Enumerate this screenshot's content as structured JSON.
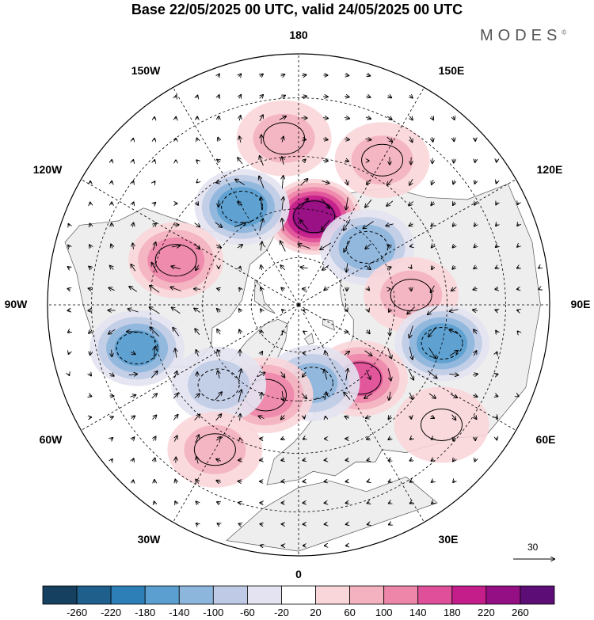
{
  "title": "Base 22/05/2025 00 UTC, valid 24/05/2025 00 UTC",
  "brand": "MODES",
  "brand_mark": "©",
  "longitude_labels": [
    "180",
    "150E",
    "120E",
    "90E",
    "60E",
    "30E",
    "0",
    "30W",
    "60W",
    "90W",
    "120W",
    "150W"
  ],
  "wind_reference": {
    "label": "30",
    "value": 30
  },
  "colorbar": {
    "ticks": [
      "-260",
      "-220",
      "-180",
      "-140",
      "-100",
      "-60",
      "-20",
      "20",
      "60",
      "100",
      "140",
      "180",
      "220",
      "260"
    ],
    "colors": [
      "#16405f",
      "#1f5f8b",
      "#2d7fb8",
      "#5a9fcf",
      "#8db6dc",
      "#bfcbe6",
      "#e3e3f1",
      "#ffffff",
      "#f9d6d9",
      "#f4b1c0",
      "#ee86aa",
      "#e0509a",
      "#c41e8b",
      "#950f84",
      "#5c0d76"
    ]
  },
  "map": {
    "projection": "north-polar-stereographic",
    "field": "height anomaly (shaded) with wind vectors",
    "colors": {
      "land": "#eeeeee",
      "ocean": "#ffffff",
      "coast": "#555555",
      "grid": "#000000"
    },
    "anomaly_centers": [
      {
        "lon": 170,
        "lat": 62,
        "value": 240
      },
      {
        "lon": -150,
        "lat": 55,
        "value": -160
      },
      {
        "lon": -110,
        "lat": 50,
        "value": 120
      },
      {
        "lon": -75,
        "lat": 40,
        "value": -140
      },
      {
        "lon": 130,
        "lat": 62,
        "value": -120
      },
      {
        "lon": 95,
        "lat": 55,
        "value": 60
      },
      {
        "lon": 75,
        "lat": 45,
        "value": -160
      },
      {
        "lon": 40,
        "lat": 60,
        "value": 140
      },
      {
        "lon": 10,
        "lat": 65,
        "value": -100
      },
      {
        "lon": -20,
        "lat": 60,
        "value": 120
      },
      {
        "lon": -45,
        "lat": 55,
        "value": -60
      },
      {
        "lon": -30,
        "lat": 40,
        "value": 60
      },
      {
        "lon": 50,
        "lat": 35,
        "value": 40
      },
      {
        "lon": 150,
        "lat": 40,
        "value": 60
      },
      {
        "lon": -175,
        "lat": 40,
        "value": 60
      }
    ]
  }
}
